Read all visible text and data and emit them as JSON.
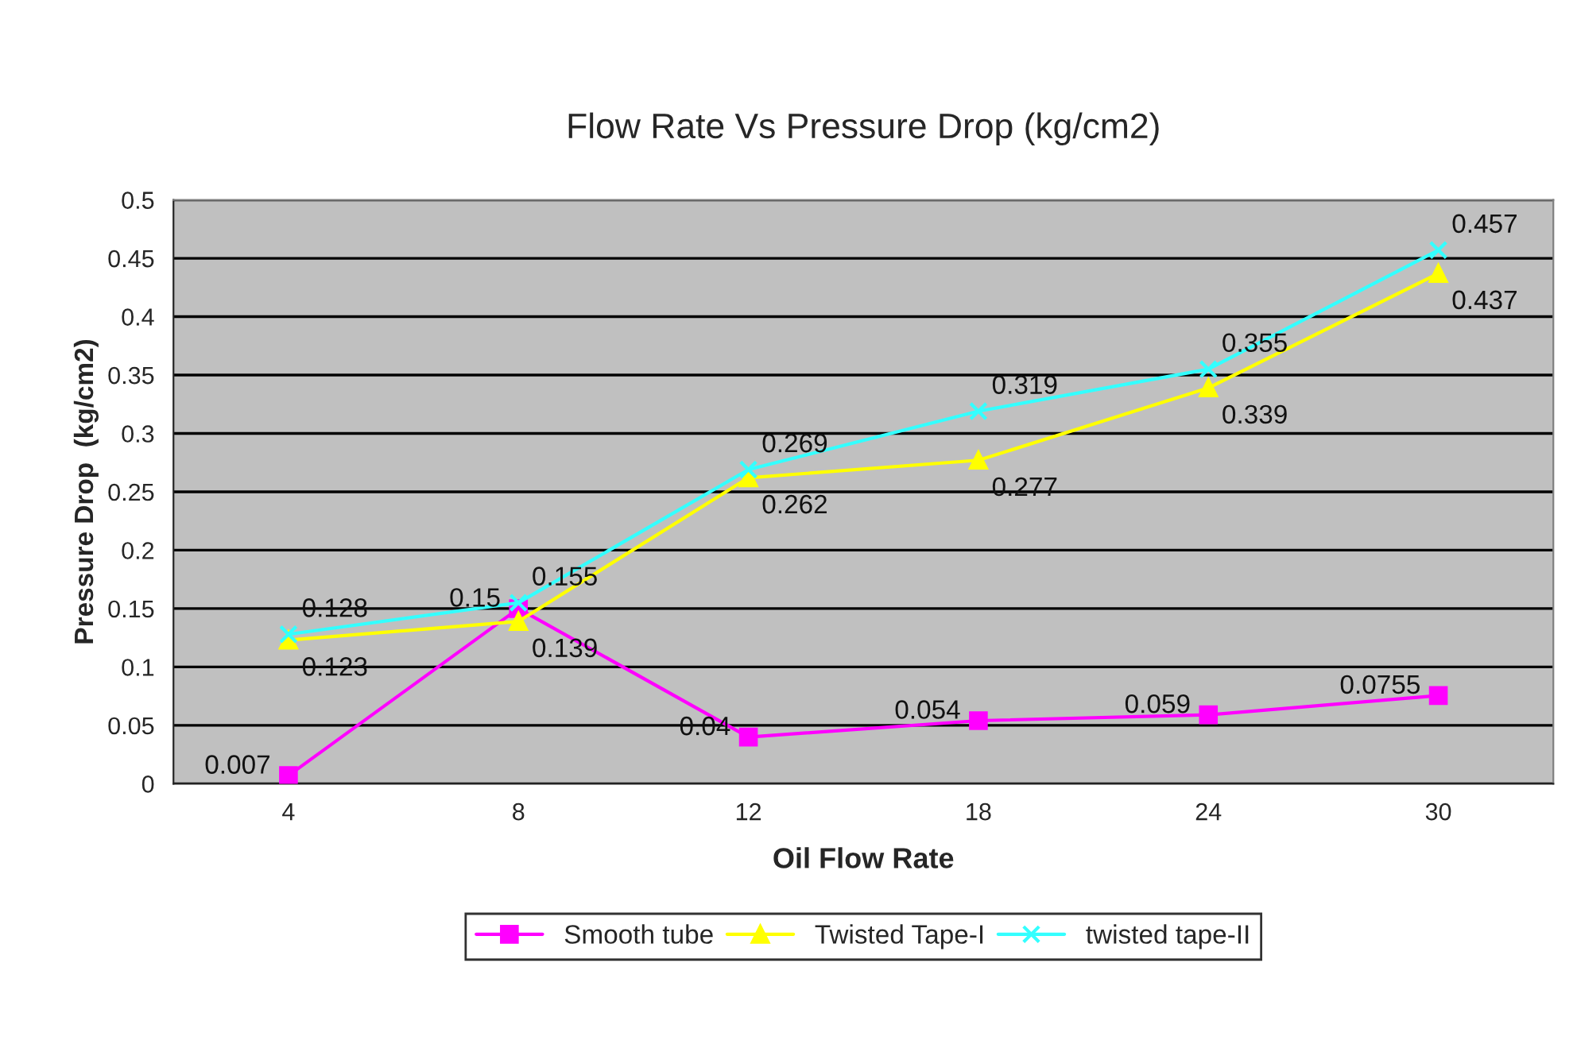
{
  "chart_data": {
    "type": "line",
    "title": "Flow Rate Vs Pressure Drop (kg/cm2)",
    "xlabel": "Oil Flow Rate",
    "ylabel": "Pressure Drop  (kg/cm2)",
    "categories": [
      "4",
      "8",
      "12",
      "18",
      "24",
      "30"
    ],
    "series": [
      {
        "name": "Smooth tube",
        "color": "#ff00ff",
        "marker": "square",
        "values": [
          0.007,
          0.15,
          0.04,
          0.054,
          0.059,
          0.0755
        ]
      },
      {
        "name": "Twisted Tape-I",
        "color": "#ffff00",
        "marker": "triangle",
        "values": [
          0.123,
          0.139,
          0.262,
          0.277,
          0.339,
          0.437
        ]
      },
      {
        "name": "twisted tape-II",
        "color": "#33ffff",
        "marker": "cross",
        "values": [
          0.128,
          0.155,
          0.269,
          0.319,
          0.355,
          0.457
        ]
      }
    ],
    "ylim": [
      0,
      0.5
    ],
    "yticks": [
      0,
      0.05,
      0.1,
      0.15,
      0.2,
      0.25,
      0.3,
      0.35,
      0.4,
      0.45,
      0.5
    ],
    "grid": "y",
    "legend": "bottom",
    "data_labels": true
  }
}
